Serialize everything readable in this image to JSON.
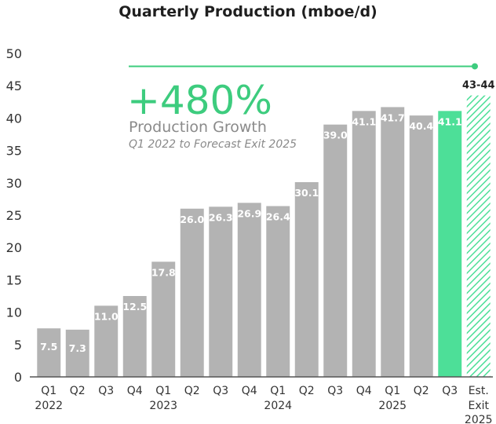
{
  "chart_data": {
    "type": "bar",
    "title": "Quarterly Production (mboe/d)",
    "ylim": [
      0,
      50
    ],
    "yticks": [
      0,
      5,
      10,
      15,
      20,
      25,
      30,
      35,
      40,
      45,
      50
    ],
    "grid": false,
    "bars": [
      {
        "quarter": "Q1",
        "year": "2022",
        "value": 7.5,
        "label": "7.5",
        "style": "gray"
      },
      {
        "quarter": "Q2",
        "year": "",
        "value": 7.3,
        "label": "7.3",
        "style": "gray"
      },
      {
        "quarter": "Q3",
        "year": "",
        "value": 11.0,
        "label": "11.0",
        "style": "gray"
      },
      {
        "quarter": "Q4",
        "year": "",
        "value": 12.5,
        "label": "12.5",
        "style": "gray"
      },
      {
        "quarter": "Q1",
        "year": "2023",
        "value": 17.8,
        "label": "17.8",
        "style": "gray"
      },
      {
        "quarter": "Q2",
        "year": "",
        "value": 26.0,
        "label": "26.0",
        "style": "gray"
      },
      {
        "quarter": "Q3",
        "year": "",
        "value": 26.3,
        "label": "26.3",
        "style": "gray"
      },
      {
        "quarter": "Q4",
        "year": "",
        "value": 26.9,
        "label": "26.9",
        "style": "gray"
      },
      {
        "quarter": "Q1",
        "year": "2024",
        "value": 26.4,
        "label": "26.4",
        "style": "gray"
      },
      {
        "quarter": "Q2",
        "year": "",
        "value": 30.1,
        "label": "30.1",
        "style": "gray"
      },
      {
        "quarter": "Q3",
        "year": "",
        "value": 39.0,
        "label": "39.0",
        "style": "gray"
      },
      {
        "quarter": "Q4",
        "year": "",
        "value": 41.1,
        "label": "41.1",
        "style": "gray"
      },
      {
        "quarter": "Q1",
        "year": "2025",
        "value": 41.7,
        "label": "41.7",
        "style": "gray"
      },
      {
        "quarter": "Q2",
        "year": "",
        "value": 40.4,
        "label": "40.4",
        "style": "gray"
      },
      {
        "quarter": "Q3",
        "year": "",
        "value": 41.1,
        "label": "41.1",
        "style": "green"
      },
      {
        "quarter": "Est.",
        "quarter2": "Exit",
        "year": "2025",
        "value": 43.5,
        "label": "43-44",
        "style": "hatched"
      }
    ],
    "annotation": {
      "headline": "+480%",
      "line1": "Production Growth",
      "line2": "Q1 2022 to Forecast Exit 2025",
      "reference_value": 48
    }
  },
  "colors": {
    "gray_bar": "#b3b3b3",
    "green_bar": "#4ddf98",
    "accent": "#3dcc7e",
    "axis": "#555555"
  }
}
